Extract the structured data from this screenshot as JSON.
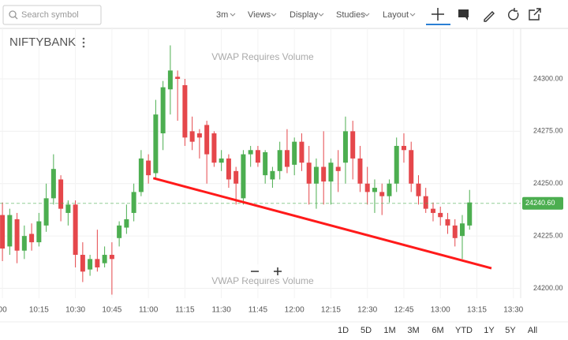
{
  "toolbar": {
    "search_placeholder": "Search symbol",
    "interval": "3m",
    "menus": [
      "Views",
      "Display",
      "Studies",
      "Layout"
    ]
  },
  "range_buttons": [
    "1D",
    "5D",
    "1M",
    "3M",
    "6M",
    "YTD",
    "1Y",
    "5Y",
    "All"
  ],
  "chart_data": {
    "type": "candlestick",
    "title": "NIFTYBANK",
    "annotations": [
      "VWAP Requires Volume",
      "VWAP Requires Volume"
    ],
    "x": [
      "10:00",
      "10:03",
      "10:06",
      "10:09",
      "10:12",
      "10:15",
      "10:18",
      "10:21",
      "10:24",
      "10:27",
      "10:30",
      "10:33",
      "10:36",
      "10:39",
      "10:42",
      "10:45",
      "10:48",
      "10:51",
      "10:54",
      "10:57",
      "11:00",
      "11:03",
      "11:06",
      "11:09",
      "11:12",
      "11:15",
      "11:18",
      "11:21",
      "11:24",
      "11:27",
      "11:30",
      "11:33",
      "11:36",
      "11:39",
      "11:42",
      "11:45",
      "11:48",
      "11:51",
      "11:54",
      "11:57",
      "12:00",
      "12:03",
      "12:06",
      "12:09",
      "12:12",
      "12:15",
      "12:18",
      "12:21",
      "12:24",
      "12:27",
      "12:30",
      "12:33",
      "12:36",
      "12:39",
      "12:42",
      "12:45",
      "12:48",
      "12:51",
      "12:54",
      "12:57",
      "13:00",
      "13:03",
      "13:06",
      "13:09",
      "13:12"
    ],
    "open": [
      24235,
      24220,
      24233,
      24218,
      24226,
      24222,
      24230,
      24243,
      24252,
      24236,
      24240,
      24216,
      24209,
      24214,
      24212,
      24216,
      24224,
      24229,
      24236,
      24246,
      24261,
      24255,
      24274,
      24295,
      24301,
      24297,
      24275,
      24274,
      24278,
      24274,
      24260,
      24262,
      24256,
      24243,
      24264,
      24266,
      24254,
      24252,
      24256,
      24266,
      24259,
      24270,
      24260,
      24250,
      24258,
      24251,
      24258,
      24260,
      24275,
      24262,
      24250,
      24246,
      24246,
      24244,
      24250,
      24268,
      24266,
      24250,
      24244,
      24238,
      24236,
      24233,
      24230,
      24225,
      24230
    ],
    "high": [
      24241,
      24238,
      24236,
      24230,
      24231,
      24236,
      24250,
      24264,
      24254,
      24242,
      24242,
      24222,
      24216,
      24228,
      24220,
      24222,
      24232,
      24240,
      24250,
      24266,
      24264,
      24290,
      24299,
      24316,
      24304,
      24300,
      24282,
      24276,
      24280,
      24275,
      24266,
      24264,
      24258,
      24266,
      24268,
      24268,
      24266,
      24258,
      24270,
      24276,
      24272,
      24274,
      24268,
      24262,
      24275,
      24262,
      24266,
      24282,
      24280,
      24268,
      24258,
      24252,
      24250,
      24252,
      24272,
      24274,
      24270,
      24254,
      24248,
      24241,
      24239,
      24236,
      24233,
      24235,
      24247
    ],
    "low": [
      24213,
      24216,
      24212,
      24214,
      24218,
      24220,
      24227,
      24240,
      24232,
      24230,
      24210,
      24203,
      24206,
      24208,
      24210,
      24197,
      24220,
      24226,
      24232,
      24244,
      24250,
      24252,
      24266,
      24283,
      24280,
      24268,
      24266,
      24262,
      24250,
      24258,
      24256,
      24248,
      24240,
      24240,
      24258,
      24258,
      24250,
      24248,
      24252,
      24255,
      24254,
      24256,
      24240,
      24238,
      24240,
      24240,
      24246,
      24250,
      24252,
      24246,
      24240,
      24236,
      24235,
      24241,
      24246,
      24260,
      24246,
      24240,
      24236,
      24232,
      24230,
      24226,
      24220,
      24214,
      24228
    ],
    "close": [
      24219,
      24235,
      24218,
      24225,
      24222,
      24232,
      24243,
      24257,
      24238,
      24240,
      24216,
      24208,
      24214,
      24210,
      24216,
      24214,
      24230,
      24233,
      24246,
      24262,
      24254,
      24283,
      24296,
      24304,
      24300,
      24272,
      24270,
      24272,
      24264,
      24260,
      24262,
      24252,
      24250,
      24264,
      24266,
      24260,
      24265,
      24256,
      24266,
      24258,
      24270,
      24260,
      24250,
      24258,
      24251,
      24260,
      24256,
      24275,
      24262,
      24250,
      24246,
      24248,
      24244,
      24250,
      24268,
      24266,
      24250,
      24244,
      24238,
      24236,
      24234,
      24230,
      24224,
      24231,
      24241
    ],
    "up_color": "#4cae50",
    "down_color": "#e5474b",
    "trendline": {
      "x": [
        "11:02",
        "13:21"
      ],
      "values": [
        24252.6,
        24209.6
      ],
      "color": "#ff1a1a"
    },
    "last_price": {
      "value": 24240.6,
      "label": "24240.60",
      "color": "#4cae50"
    },
    "xlim": [
      "09:59",
      "13:33"
    ],
    "xticks": [
      {
        "value": "10:00",
        "label": "00"
      },
      "10:15",
      "10:30",
      "10:45",
      "11:00",
      "11:15",
      "11:30",
      "11:45",
      "12:00",
      "12:15",
      "12:30",
      "12:45",
      "13:00",
      "13:15",
      "13:30"
    ],
    "ylim": [
      24195.3,
      24324.1
    ],
    "yticks": [
      {
        "value": 24200,
        "label": "24200.00"
      },
      {
        "value": 24225,
        "label": "24225.00"
      },
      {
        "value": 24250,
        "label": "24250.00"
      },
      {
        "value": 24275,
        "label": "24275.00"
      },
      {
        "value": 24300,
        "label": "24300.00"
      }
    ],
    "grid": true
  }
}
